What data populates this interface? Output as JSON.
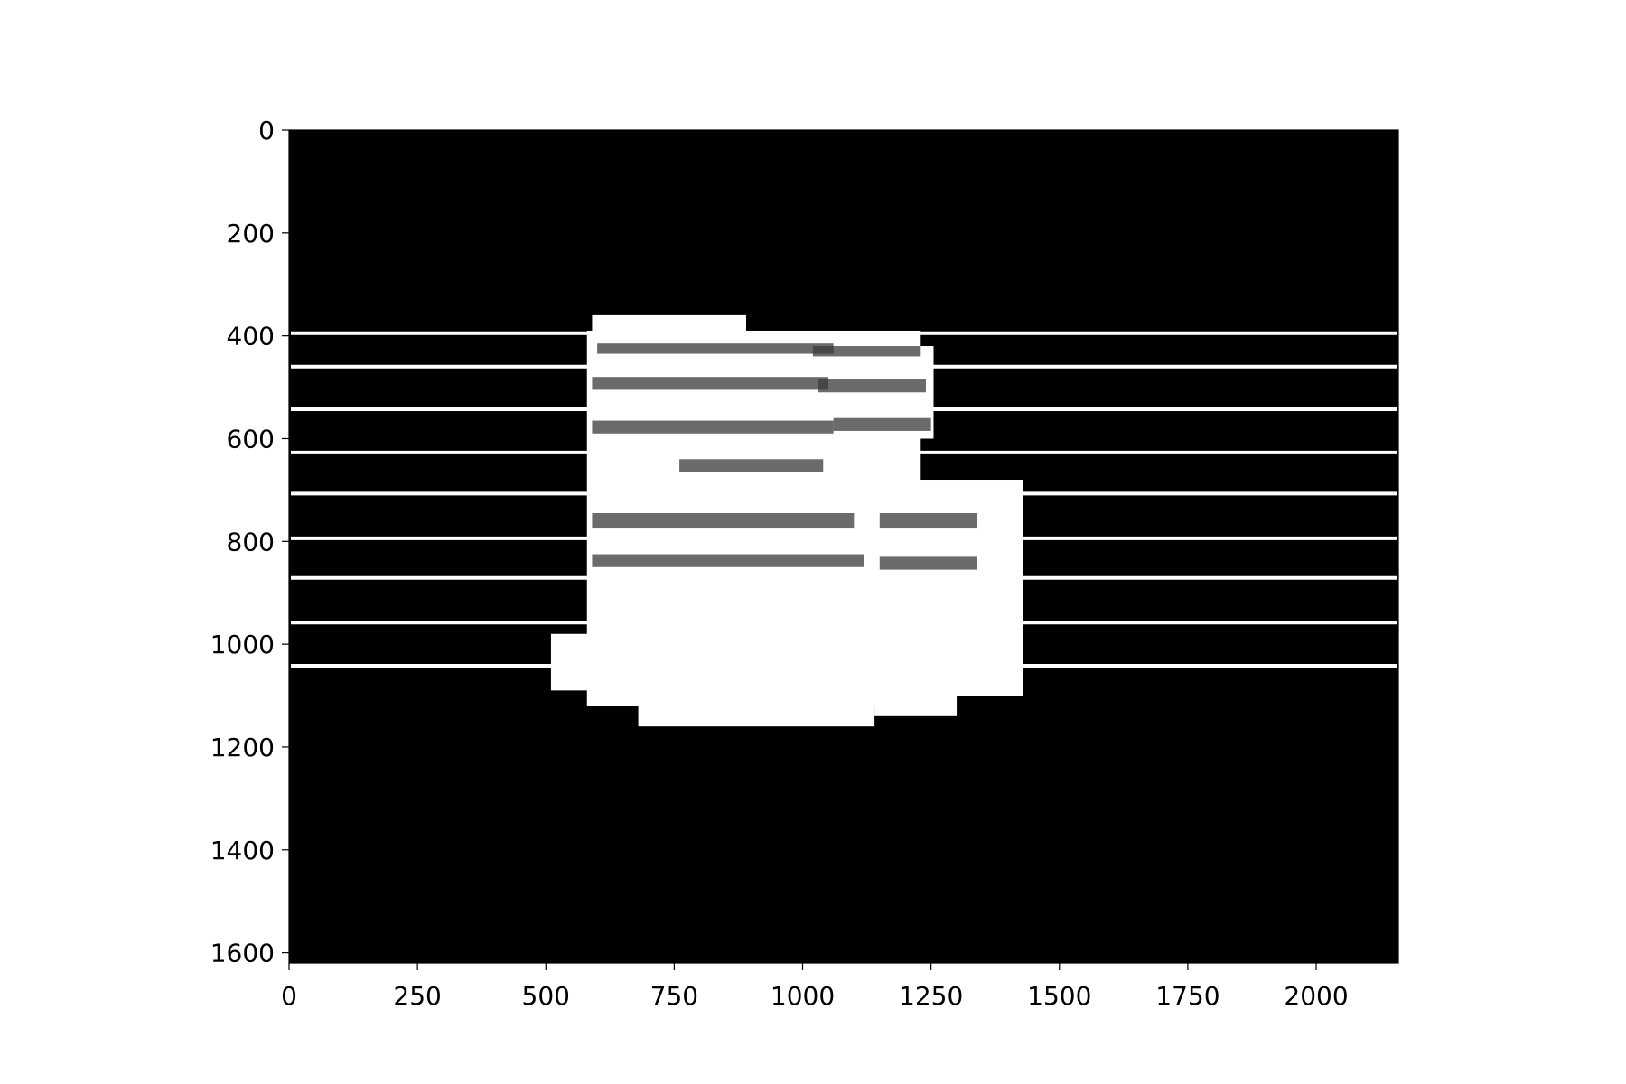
{
  "chart_data": {
    "type": "image",
    "title": "",
    "xlabel": "",
    "ylabel": "",
    "image_extent": {
      "x": [
        0,
        2160
      ],
      "y": [
        0,
        1620
      ]
    },
    "y_inverted": true,
    "xlim": [
      0,
      2160
    ],
    "ylim": [
      1620,
      0
    ],
    "x_ticks": [
      0,
      250,
      500,
      750,
      1000,
      1250,
      1500,
      1750,
      2000
    ],
    "y_ticks": [
      0,
      200,
      400,
      600,
      800,
      1000,
      1200,
      1400,
      1600
    ],
    "grid": false,
    "legend": "none",
    "background_color": "#000000",
    "fragment_color": "#ffffff",
    "ink_color": "#3a3a3a",
    "line_color": "#ffffff",
    "horizontal_lines": [
      {
        "y": 395,
        "x": [
          0,
          2160
        ]
      },
      {
        "y": 460,
        "x": [
          0,
          2160
        ]
      },
      {
        "y": 543,
        "x": [
          0,
          2160
        ]
      },
      {
        "y": 627,
        "x": [
          0,
          2160
        ]
      },
      {
        "y": 707,
        "x": [
          0,
          2160
        ]
      },
      {
        "y": 794,
        "x": [
          0,
          2160
        ]
      },
      {
        "y": 871,
        "x": [
          0,
          2160
        ]
      },
      {
        "y": 958,
        "x": [
          0,
          2160
        ]
      },
      {
        "y": 1042,
        "x": [
          0,
          2160
        ]
      }
    ],
    "fragments": [
      {
        "x": [
          590,
          890
        ],
        "y": [
          360,
          620
        ]
      },
      {
        "x": [
          580,
          1230
        ],
        "y": [
          390,
          1120
        ]
      },
      {
        "x": [
          1020,
          1255
        ],
        "y": [
          420,
          600
        ]
      },
      {
        "x": [
          1140,
          1430
        ],
        "y": [
          680,
          1100
        ]
      },
      {
        "x": [
          510,
          680
        ],
        "y": [
          980,
          1090
        ]
      },
      {
        "x": [
          680,
          1140
        ],
        "y": [
          990,
          1160
        ]
      },
      {
        "x": [
          680,
          870
        ],
        "y": [
          620,
          760
        ]
      },
      {
        "x": [
          1140,
          1300
        ],
        "y": [
          1060,
          1140
        ]
      }
    ],
    "ink_strokes": [
      {
        "x": [
          600,
          1060
        ],
        "y": [
          415,
          435
        ]
      },
      {
        "x": [
          1020,
          1230
        ],
        "y": [
          420,
          440
        ]
      },
      {
        "x": [
          590,
          1050
        ],
        "y": [
          480,
          505
        ]
      },
      {
        "x": [
          1030,
          1240
        ],
        "y": [
          485,
          510
        ]
      },
      {
        "x": [
          590,
          1060
        ],
        "y": [
          565,
          590
        ]
      },
      {
        "x": [
          1060,
          1250
        ],
        "y": [
          560,
          585
        ]
      },
      {
        "x": [
          760,
          1040
        ],
        "y": [
          640,
          665
        ]
      },
      {
        "x": [
          590,
          1100
        ],
        "y": [
          745,
          775
        ]
      },
      {
        "x": [
          1150,
          1340
        ],
        "y": [
          745,
          775
        ]
      },
      {
        "x": [
          590,
          1120
        ],
        "y": [
          825,
          850
        ]
      },
      {
        "x": [
          1150,
          1340
        ],
        "y": [
          830,
          855
        ]
      }
    ]
  }
}
